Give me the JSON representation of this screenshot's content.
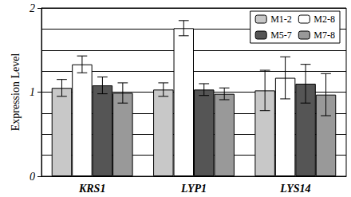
{
  "chart_data": {
    "type": "bar",
    "y_label": "Expression Level",
    "categories": [
      "KRS1",
      "LYP1",
      "LYS14"
    ],
    "series": [
      {
        "name": "M1-2",
        "color": "#c8c8c8",
        "values": [
          1.05,
          1.03,
          1.02
        ],
        "errors": [
          0.1,
          0.08,
          0.24
        ]
      },
      {
        "name": "M2-8",
        "color": "#ffffff",
        "values": [
          1.33,
          1.76,
          1.17
        ],
        "errors": [
          0.1,
          0.09,
          0.25
        ]
      },
      {
        "name": "M5-7",
        "color": "#555555",
        "values": [
          1.08,
          1.03,
          1.1
        ],
        "errors": [
          0.1,
          0.07,
          0.23
        ]
      },
      {
        "name": "M7-8",
        "color": "#999999",
        "values": [
          0.99,
          0.98,
          0.97
        ],
        "errors": [
          0.12,
          0.07,
          0.25
        ]
      }
    ],
    "ylim": [
      0,
      2
    ],
    "yticks": [
      0,
      1,
      2
    ],
    "grid": true,
    "legend": "top right"
  }
}
